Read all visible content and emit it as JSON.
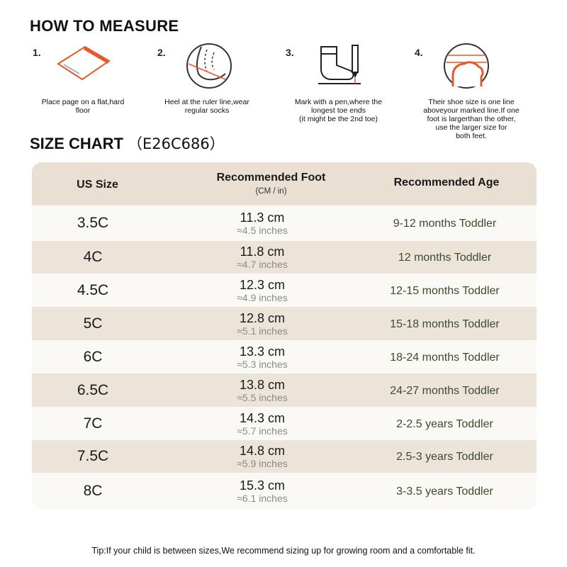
{
  "how_to_measure": {
    "title": "HOW TO MEASURE",
    "steps": [
      {
        "num": "1.",
        "text": "Place page on a flat,hard\nfloor",
        "icon": "paper-sheet-icon"
      },
      {
        "num": "2.",
        "text": "Heel at the ruler line,wear\nregular socks",
        "icon": "heel-on-line-icon"
      },
      {
        "num": "3.",
        "text": "Mark with a pen,where the\nlongest toe ends\n(it might be the 2nd toe)",
        "icon": "sock-and-pen-icon"
      },
      {
        "num": "4.",
        "text": "Their shoe size is one line\naboveyour marked line.If one\nfoot is largerthan the other,\nuse the larger size for\nboth feet.",
        "icon": "toe-mark-icon"
      }
    ]
  },
  "size_chart": {
    "title": "SIZE CHART",
    "code": "（E26C686）",
    "headers": {
      "us_size": "US Size",
      "foot": "Recommended Foot",
      "foot_unit": "(CM / in)",
      "age": "Recommended Age"
    },
    "rows": [
      {
        "size": "3.5C",
        "cm": "11.3 cm",
        "inches": "≈4.5 inches",
        "age": "9-12 months Toddler"
      },
      {
        "size": "4C",
        "cm": "11.8 cm",
        "inches": "≈4.7 inches",
        "age": "12 months Toddler"
      },
      {
        "size": "4.5C",
        "cm": "12.3 cm",
        "inches": "≈4.9 inches",
        "age": "12-15 months Toddler"
      },
      {
        "size": "5C",
        "cm": "12.8 cm",
        "inches": "≈5.1 inches",
        "age": "15-18 months Toddler"
      },
      {
        "size": "6C",
        "cm": "13.3 cm",
        "inches": "≈5.3 inches",
        "age": "18-24 months Toddler"
      },
      {
        "size": "6.5C",
        "cm": "13.8 cm",
        "inches": "≈5.5 inches",
        "age": "24-27 months Toddler"
      },
      {
        "size": "7C",
        "cm": "14.3 cm",
        "inches": "≈5.7 inches",
        "age": "2-2.5 years Toddler"
      },
      {
        "size": "7.5C",
        "cm": "14.8 cm",
        "inches": "≈5.9 inches",
        "age": "2.5-3 years Toddler"
      },
      {
        "size": "8C",
        "cm": "15.3 cm",
        "inches": "≈6.1 inches",
        "age": "3-3.5 years Toddler"
      }
    ]
  },
  "tip": "Tip:If your child is between sizes,We recommend sizing up for growing room and a comfortable fit.",
  "colors": {
    "accent": "#e8582a",
    "header_bg": "#e9e0d3",
    "row_light": "#fbf9f6",
    "row_dark": "#ece4d8",
    "age_text": "#3c4a2f"
  }
}
